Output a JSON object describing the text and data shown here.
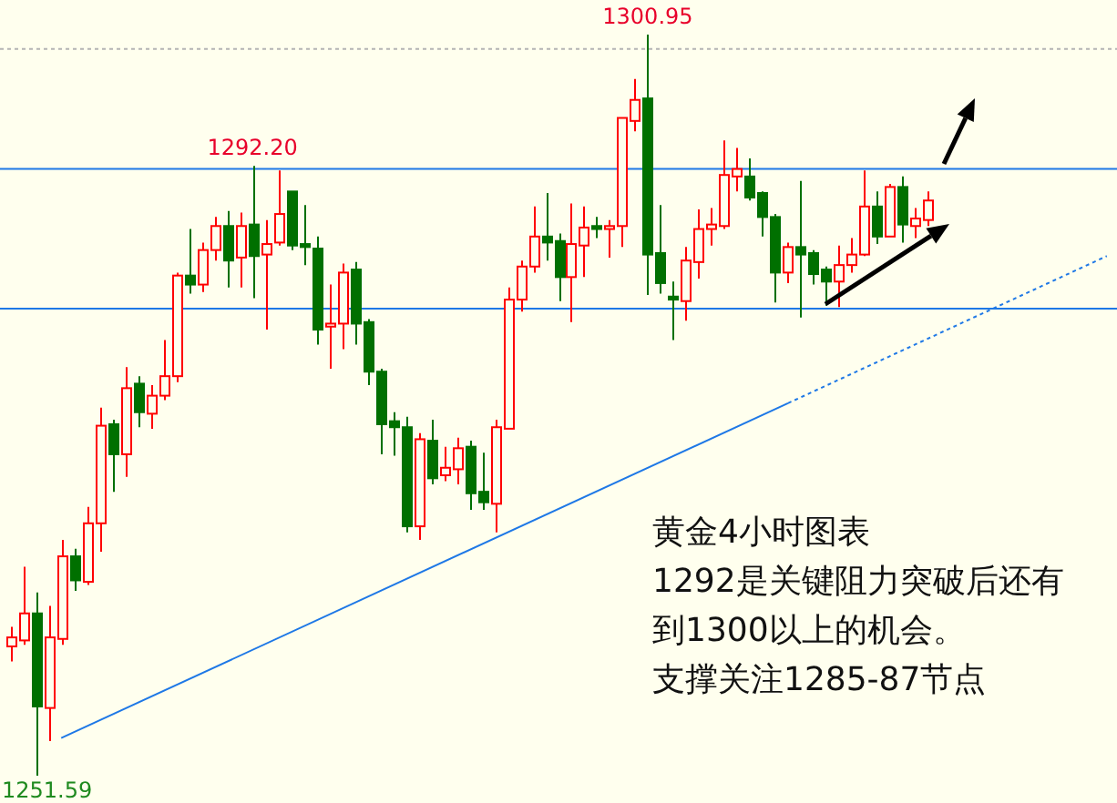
{
  "chart_data": {
    "type": "candlestick",
    "categories": [
      null,
      null,
      null,
      null,
      null,
      null,
      null,
      null,
      null,
      null,
      null,
      null,
      null,
      null,
      null,
      null,
      null,
      null,
      null,
      null,
      null,
      null,
      null,
      null,
      null,
      null,
      null,
      null,
      null,
      null,
      null,
      null,
      null,
      null,
      null,
      null,
      null,
      null,
      null,
      null,
      null,
      null,
      null,
      null,
      null,
      null,
      null,
      null,
      null,
      null,
      null,
      null,
      null,
      null,
      null,
      null,
      null,
      null,
      null,
      null,
      null,
      null,
      null,
      null,
      null,
      null,
      null,
      null,
      null,
      null,
      null,
      null,
      null,
      null,
      null,
      null,
      null,
      null,
      null,
      null,
      null,
      null,
      null,
      null,
      null,
      null,
      null
    ],
    "ohlc": [
      [
        1260.2,
        1261.5,
        1259.2,
        1260.8
      ],
      [
        1260.6,
        1265.5,
        1260.3,
        1262.4
      ],
      [
        1262.4,
        1263.8,
        1251.59,
        1256.2
      ],
      [
        1256.1,
        1262.9,
        1253.9,
        1260.8
      ],
      [
        1260.7,
        1267.3,
        1260.3,
        1266.2
      ],
      [
        1266.2,
        1266.7,
        1263.9,
        1264.6
      ],
      [
        1264.5,
        1269.5,
        1264.3,
        1268.4
      ],
      [
        1268.4,
        1276.1,
        1266.5,
        1274.9
      ],
      [
        1275.0,
        1275.3,
        1270.5,
        1273.0
      ],
      [
        1273.0,
        1278.8,
        1271.5,
        1277.4
      ],
      [
        1277.7,
        1278.2,
        1274.8,
        1275.8
      ],
      [
        1275.7,
        1277.6,
        1274.7,
        1276.9
      ],
      [
        1276.9,
        1280.6,
        1276.6,
        1278.2
      ],
      [
        1278.2,
        1285.1,
        1277.8,
        1284.9
      ],
      [
        1284.9,
        1288.0,
        1283.7,
        1284.3
      ],
      [
        1284.3,
        1287.1,
        1283.8,
        1286.6
      ],
      [
        1286.6,
        1288.8,
        1285.9,
        1288.2
      ],
      [
        1288.2,
        1289.2,
        1284.1,
        1285.9
      ],
      [
        1286.1,
        1289.1,
        1284.1,
        1288.2
      ],
      [
        1288.3,
        1292.2,
        1283.4,
        1286.2
      ],
      [
        1286.3,
        1288.6,
        1281.3,
        1287.0
      ],
      [
        1287.1,
        1291.9,
        1286.9,
        1289.0
      ],
      [
        1290.5,
        1290.5,
        1286.6,
        1286.9
      ],
      [
        1287.0,
        1289.6,
        1285.6,
        1286.8
      ],
      [
        1286.7,
        1287.5,
        1280.3,
        1281.3
      ],
      [
        1281.5,
        1284.3,
        1278.7,
        1281.7
      ],
      [
        1281.7,
        1285.7,
        1280.0,
        1285.1
      ],
      [
        1285.3,
        1285.8,
        1280.3,
        1281.7
      ],
      [
        1281.8,
        1282.0,
        1277.6,
        1278.5
      ],
      [
        1278.5,
        1278.7,
        1273.0,
        1275.0
      ],
      [
        1275.2,
        1275.8,
        1272.9,
        1274.8
      ],
      [
        1274.8,
        1275.5,
        1267.8,
        1268.2
      ],
      [
        1268.2,
        1274.4,
        1267.3,
        1274.0
      ],
      [
        1273.9,
        1275.3,
        1271.0,
        1271.4
      ],
      [
        1271.6,
        1273.5,
        1271.2,
        1272.1
      ],
      [
        1272.0,
        1274.1,
        1271.0,
        1273.4
      ],
      [
        1273.5,
        1273.9,
        1269.3,
        1270.4
      ],
      [
        1270.5,
        1273.1,
        1269.3,
        1269.8
      ],
      [
        1269.7,
        1275.3,
        1267.8,
        1274.8
      ],
      [
        1274.7,
        1284.1,
        1274.7,
        1283.3
      ],
      [
        1283.3,
        1285.9,
        1282.5,
        1285.5
      ],
      [
        1285.5,
        1289.5,
        1285.1,
        1287.5
      ],
      [
        1287.5,
        1290.4,
        1285.9,
        1287.1
      ],
      [
        1287.2,
        1287.7,
        1283.2,
        1284.8
      ],
      [
        1284.8,
        1289.7,
        1281.8,
        1287.0
      ],
      [
        1286.9,
        1289.5,
        1284.8,
        1288.1
      ],
      [
        1288.2,
        1288.8,
        1287.4,
        1288.0
      ],
      [
        1288.0,
        1288.6,
        1286.1,
        1288.2
      ],
      [
        1288.2,
        1295.4,
        1286.8,
        1295.4
      ],
      [
        1295.2,
        1298.0,
        1294.5,
        1296.6
      ],
      [
        1296.7,
        1300.95,
        1283.6,
        1286.3
      ],
      [
        1286.4,
        1289.6,
        1283.7,
        1284.4
      ],
      [
        1283.5,
        1284.5,
        1280.6,
        1283.3
      ],
      [
        1283.2,
        1286.8,
        1281.9,
        1285.9
      ],
      [
        1285.8,
        1289.3,
        1284.7,
        1288.0
      ],
      [
        1288.0,
        1289.4,
        1286.9,
        1288.3
      ],
      [
        1288.2,
        1293.9,
        1288.0,
        1291.6
      ],
      [
        1291.5,
        1293.4,
        1290.5,
        1292.0
      ],
      [
        1291.5,
        1292.7,
        1289.9,
        1290.1
      ],
      [
        1290.4,
        1290.5,
        1287.5,
        1288.8
      ],
      [
        1288.8,
        1289.0,
        1283.1,
        1285.1
      ],
      [
        1285.1,
        1287.1,
        1284.4,
        1286.8
      ],
      [
        1286.8,
        1291.2,
        1282.1,
        1286.3
      ],
      [
        1286.4,
        1286.6,
        1284.3,
        1285.0
      ],
      [
        1285.3,
        1285.5,
        1282.9,
        1284.5
      ],
      [
        1284.5,
        1286.9,
        1282.8,
        1285.6
      ],
      [
        1285.6,
        1287.4,
        1285.1,
        1286.3
      ],
      [
        1286.3,
        1291.9,
        1286.2,
        1289.5
      ],
      [
        1289.5,
        1290.5,
        1287.0,
        1287.5
      ],
      [
        1287.5,
        1291.0,
        1287.5,
        1290.8
      ],
      [
        1290.8,
        1291.5,
        1287.1,
        1288.3
      ],
      [
        1288.2,
        1289.4,
        1287.4,
        1288.7
      ],
      [
        1288.6,
        1290.5,
        1288.2,
        1289.9
      ],
      null,
      null,
      null,
      null,
      null,
      null,
      null,
      null,
      null,
      null,
      null,
      null,
      null,
      null
    ],
    "series": [
      {
        "type": "line",
        "color": "#1e78e6",
        "line_style": "solid",
        "values": [
          null,
          null,
          null,
          null,
          1254.1,
          null,
          null,
          null,
          null,
          null,
          null,
          null,
          null,
          null,
          null,
          null,
          null,
          null,
          null,
          null,
          null,
          null,
          null,
          null,
          null,
          null,
          null,
          null,
          null,
          null,
          null,
          null,
          null,
          null,
          null,
          null,
          null,
          null,
          null,
          null,
          null,
          null,
          null,
          null,
          null,
          null,
          null,
          null,
          null,
          null,
          null,
          null,
          null,
          null,
          null,
          null,
          null,
          null,
          null,
          null,
          null,
          1276.4,
          null,
          null,
          null,
          null,
          null,
          null,
          null,
          null,
          null,
          null,
          null,
          null,
          null,
          null,
          null,
          null,
          null,
          null,
          null,
          null,
          null,
          null,
          null,
          null,
          null
        ]
      },
      {
        "type": "line",
        "color": "#1e78e6",
        "line_style": "dotted",
        "values": [
          null,
          null,
          null,
          null,
          null,
          null,
          null,
          null,
          null,
          null,
          null,
          null,
          null,
          null,
          null,
          null,
          null,
          null,
          null,
          null,
          null,
          null,
          null,
          null,
          null,
          null,
          null,
          null,
          null,
          null,
          null,
          null,
          null,
          null,
          null,
          null,
          null,
          null,
          null,
          null,
          null,
          null,
          null,
          null,
          null,
          null,
          null,
          null,
          null,
          null,
          null,
          null,
          null,
          null,
          null,
          null,
          null,
          null,
          null,
          null,
          null,
          1276.4,
          null,
          null,
          null,
          null,
          null,
          null,
          null,
          null,
          null,
          null,
          null,
          null,
          null,
          null,
          null,
          null,
          null,
          null,
          null,
          null,
          null,
          null,
          null,
          null,
          1286.2
        ]
      }
    ],
    "ref_lines": [
      {
        "axis": "y",
        "value": 1292,
        "color": "#1e78e6",
        "line_style": "solid"
      },
      {
        "axis": "y",
        "value": 1282.7,
        "color": "#1e78e6",
        "line_style": "solid"
      },
      {
        "axis": "y",
        "value": 1300,
        "color": "#b4b4b4",
        "line_style": "dotted"
      }
    ],
    "annotations": [
      {
        "text": "1300.95",
        "y": 1300.95
      },
      {
        "text": "1292.20",
        "y": 1292.2
      },
      "1251.59",
      "黄金4小时图表",
      "1292是关键阻力突破后还有",
      "到1300以上的机会。",
      "支撑关注1285-87节点"
    ]
  }
}
